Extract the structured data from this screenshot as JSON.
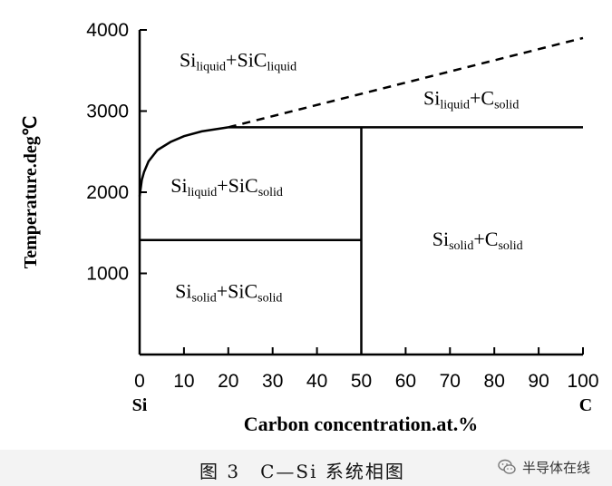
{
  "chart_data": {
    "type": "phase-diagram",
    "xlabel": "Carbon concentration.at.%",
    "ylabel": "Temperature.deg℃",
    "xlim": [
      0,
      100
    ],
    "ylim": [
      0,
      4000
    ],
    "x_ticks": [
      0,
      10,
      20,
      30,
      40,
      50,
      60,
      70,
      80,
      90,
      100
    ],
    "y_ticks": [
      1000,
      2000,
      3000,
      4000
    ],
    "x_end_labels": {
      "left": "Si",
      "right": "C"
    },
    "lines": [
      {
        "name": "liquidus-curve",
        "style": "solid",
        "points": [
          [
            0,
            1950
          ],
          [
            0.5,
            2150
          ],
          [
            1,
            2250
          ],
          [
            2,
            2380
          ],
          [
            4,
            2520
          ],
          [
            7,
            2620
          ],
          [
            10,
            2690
          ],
          [
            14,
            2750
          ],
          [
            20,
            2800
          ]
        ]
      },
      {
        "name": "eutectic-line-2800",
        "style": "solid",
        "points": [
          [
            20,
            2800
          ],
          [
            100,
            2800
          ]
        ]
      },
      {
        "name": "extrapolated-liquidus",
        "style": "dashed",
        "points": [
          [
            20,
            2800
          ],
          [
            100,
            3900
          ]
        ]
      },
      {
        "name": "solidus-line-1410",
        "style": "solid",
        "points": [
          [
            0,
            1410
          ],
          [
            50,
            1410
          ]
        ]
      },
      {
        "name": "sic-composition-line",
        "style": "solid",
        "points": [
          [
            50,
            0
          ],
          [
            50,
            2800
          ]
        ]
      }
    ],
    "regions": [
      {
        "base": "Si",
        "base_sub": "liquid",
        "plus": "+",
        "base2": "SiC",
        "base2_sub": "liquid",
        "at": [
          9,
          3550
        ]
      },
      {
        "base": "Si",
        "base_sub": "liquid",
        "plus": "+",
        "base2": "C",
        "base2_sub": "solid",
        "at": [
          64,
          3080
        ]
      },
      {
        "base": "Si",
        "base_sub": "liquid",
        "plus": "+",
        "base2": "SiC",
        "base2_sub": "solid",
        "at": [
          7,
          2000
        ]
      },
      {
        "base": "Si",
        "base_sub": "solid",
        "plus": "+",
        "base2": "C",
        "base2_sub": "solid",
        "at": [
          66,
          1340
        ]
      },
      {
        "base": "Si",
        "base_sub": "solid",
        "plus": "+",
        "base2": "SiC",
        "base2_sub": "solid",
        "at": [
          8,
          700
        ]
      }
    ]
  },
  "caption": "图 3　C—Si 系统相图",
  "badge": {
    "text": "半导体在线",
    "icon": "wechat-icon"
  }
}
